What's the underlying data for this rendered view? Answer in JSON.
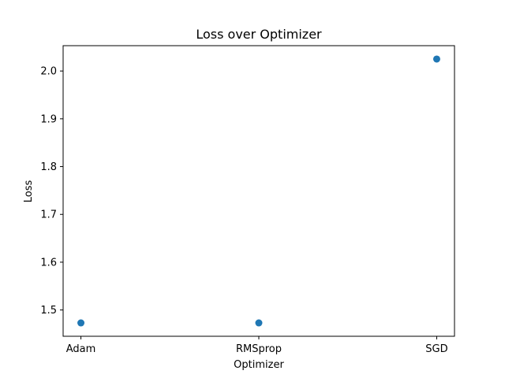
{
  "chart_data": {
    "type": "scatter",
    "title": "Loss over Optimizer",
    "xlabel": "Optimizer",
    "ylabel": "Loss",
    "categories": [
      "Adam",
      "RMSprop",
      "SGD"
    ],
    "values": [
      1.473,
      1.473,
      2.025
    ],
    "ylim": [
      1.445,
      2.053
    ],
    "yticks": [
      "1.5",
      "1.6",
      "1.7",
      "1.8",
      "1.9",
      "2.0"
    ],
    "grid": false,
    "legend": "none",
    "point_color": "#1f77b4"
  }
}
